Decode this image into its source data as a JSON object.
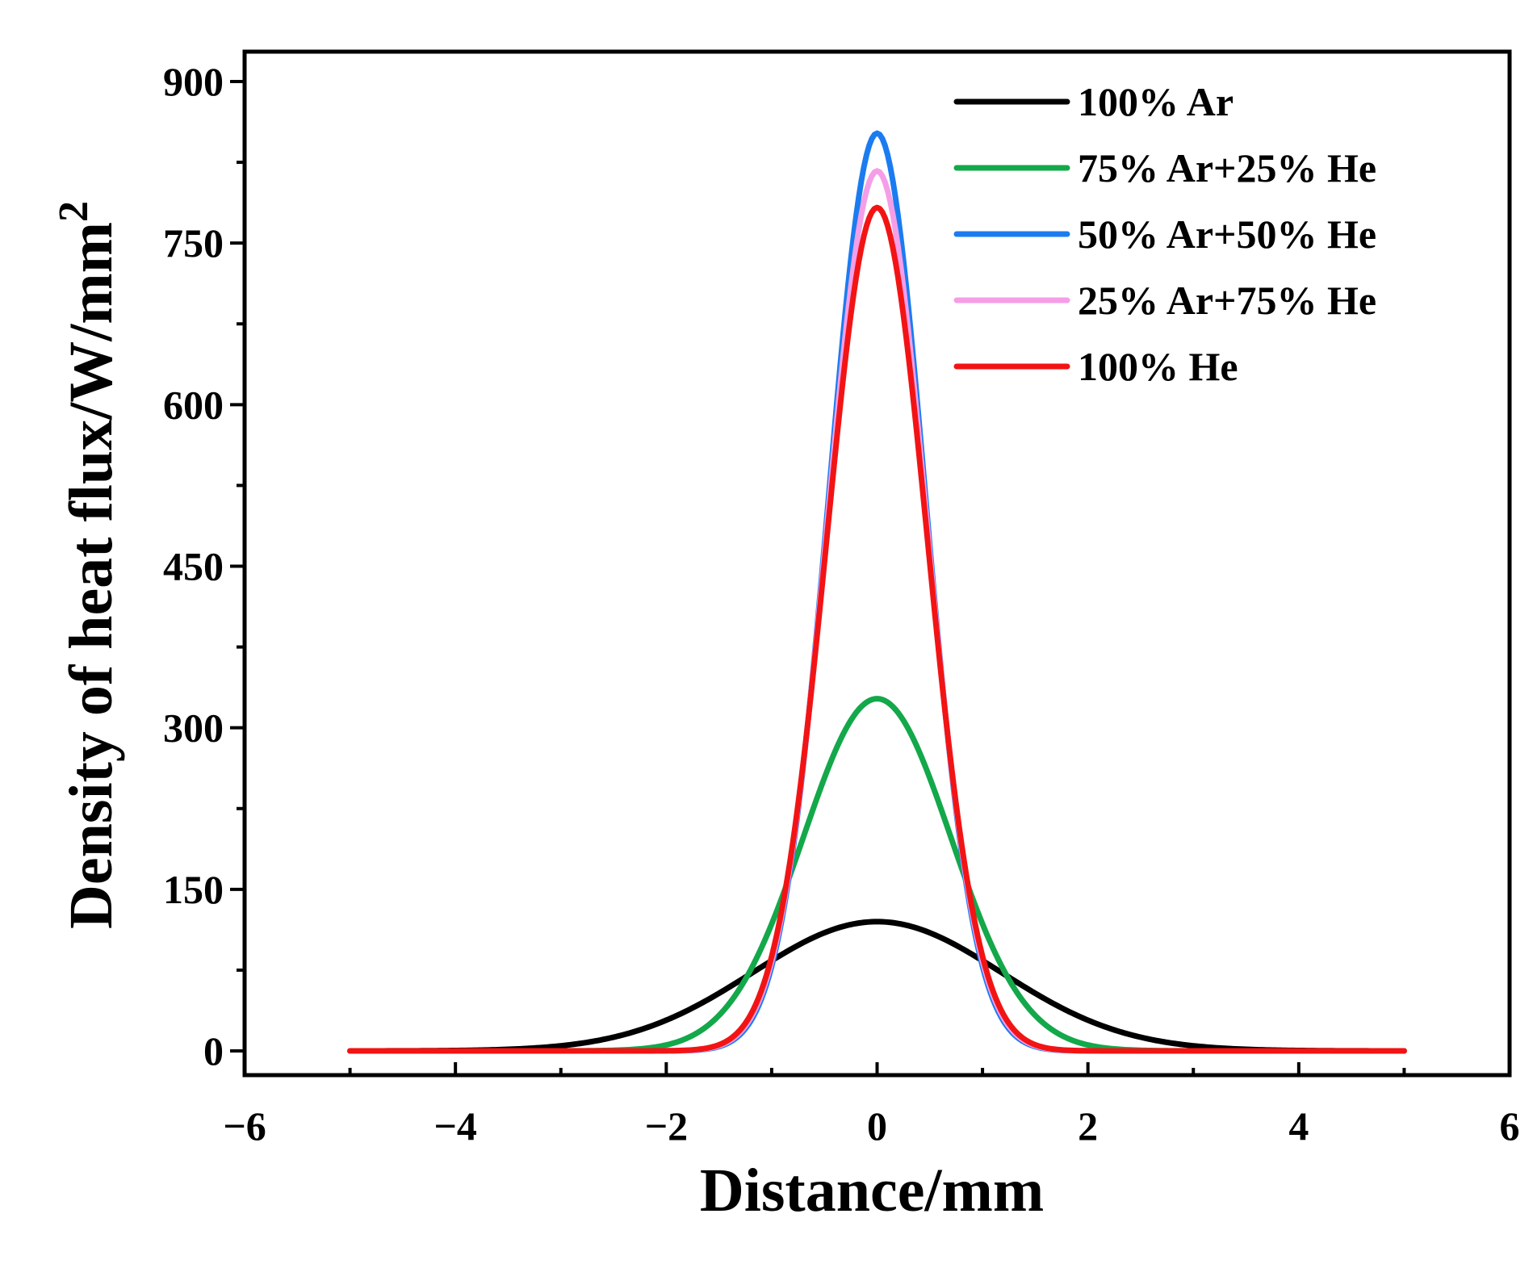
{
  "chart_data": {
    "type": "line",
    "xlabel": "Distance/mm",
    "ylabel": "Density of heat flux/W/mm",
    "ylabel_superscript": "2",
    "xlim": [
      -6,
      6
    ],
    "ylim": [
      -40,
      900
    ],
    "xticks": [
      -6,
      -4,
      -2,
      0,
      2,
      4,
      6
    ],
    "xtick_labels": [
      "−6",
      "−4",
      "−2",
      "0",
      "2",
      "4",
      "6"
    ],
    "yticks": [
      0,
      150,
      300,
      450,
      600,
      750,
      900
    ],
    "ytick_labels": [
      "0",
      "150",
      "300",
      "450",
      "600",
      "750",
      "900"
    ],
    "grid": false,
    "legend_position": "top-right",
    "series": [
      {
        "name": "100% Ar",
        "color": "#000000",
        "peak": 120,
        "sigma": 1.18,
        "x_range": [
          -5,
          5
        ]
      },
      {
        "name": "75% Ar+25% He",
        "color": "#13a84a",
        "peak": 327,
        "sigma": 0.7,
        "x_range": [
          -5,
          5
        ]
      },
      {
        "name": "50% Ar+50% He",
        "color": "#1b7cf0",
        "peak": 852,
        "sigma": 0.458,
        "x_range": [
          -5,
          5
        ]
      },
      {
        "name": "25% Ar+75% He",
        "color": "#f59ee8",
        "peak": 817,
        "sigma": 0.468,
        "x_range": [
          -5,
          5
        ]
      },
      {
        "name": "100% He",
        "color": "#f21414",
        "peak": 783,
        "sigma": 0.478,
        "x_range": [
          -5,
          5
        ]
      }
    ]
  }
}
